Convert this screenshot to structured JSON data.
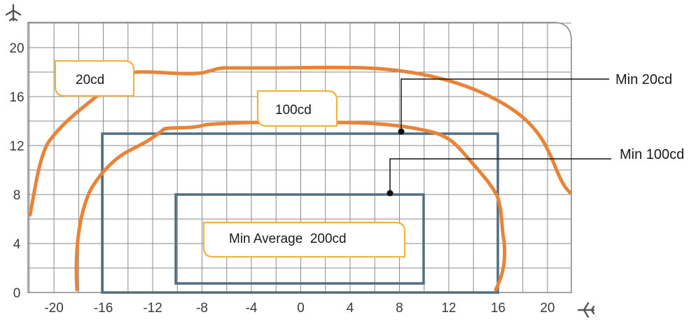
{
  "axes": {
    "x_ticks": [
      "-20",
      "-16",
      "-12",
      "-8",
      "-4",
      "0",
      "4",
      "8",
      "12",
      "16",
      "20"
    ],
    "y_ticks": [
      "0",
      "4",
      "8",
      "12",
      "16",
      "20"
    ],
    "x_icon": "airplane-right-icon",
    "y_icon": "airplane-up-icon"
  },
  "zones": {
    "contour_20": "20cd",
    "contour_100": "100cd",
    "rect_200": "Min Average  200cd"
  },
  "callouts": {
    "min_20": "Min 20cd",
    "min_100": "Min 100cd"
  },
  "colors": {
    "contour": "#e8843a",
    "rect": "#506e82",
    "label_box": "#f0b43c",
    "grid": "#8a8a8a"
  }
}
